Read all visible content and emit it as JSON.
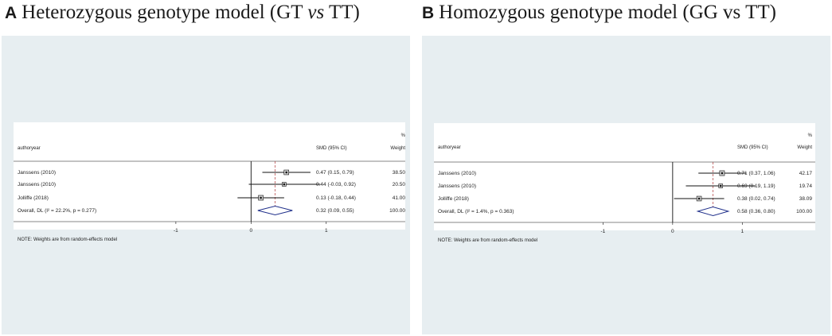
{
  "chart_data": [
    {
      "type": "forest",
      "panel_letter": "A",
      "title_parts": [
        "Heterozygous genotype model (GT ",
        "vs",
        " TT)"
      ],
      "header": {
        "study": "authoryear",
        "effect": "SMD (95% CI)",
        "weight_pct": "%",
        "weight": "Weight"
      },
      "rows": [
        {
          "label": "Janssens (2010)",
          "est": 0.47,
          "lo": 0.15,
          "hi": 0.79,
          "weight": 38.5,
          "effect_text": "0.47 (0.15, 0.79)",
          "weight_text": "38.50"
        },
        {
          "label": "Janssens (2010)",
          "est": 0.44,
          "lo": -0.03,
          "hi": 0.92,
          "weight": 20.5,
          "effect_text": "0.44 (-0.03, 0.92)",
          "weight_text": "20.50"
        },
        {
          "label": "Jolliffe (2018)",
          "est": 0.13,
          "lo": -0.18,
          "hi": 0.44,
          "weight": 41.0,
          "effect_text": "0.13 (-0.18, 0.44)",
          "weight_text": "41.00"
        }
      ],
      "overall": {
        "label": "Overall, DL (I² = 22.2%, p = 0.277)",
        "est": 0.32,
        "lo": 0.09,
        "hi": 0.55,
        "effect_text": "0.32 (0.09, 0.55)",
        "weight_text": "100.00"
      },
      "xlim": [
        -2.1,
        1.5
      ],
      "x_ticks": [
        -1,
        0,
        1
      ],
      "x_tick_labels": [
        "-1",
        "0",
        "1"
      ],
      "note": "NOTE: Weights are from random-effects model"
    },
    {
      "type": "forest",
      "panel_letter": "B",
      "title_parts": [
        "Homozygous genotype model (GG vs TT)"
      ],
      "header": {
        "study": "authoryear",
        "effect": "SMD (95% CI)",
        "weight_pct": "%",
        "weight": "Weight"
      },
      "rows": [
        {
          "label": "Janssens (2010)",
          "est": 0.71,
          "lo": 0.37,
          "hi": 1.06,
          "weight": 42.17,
          "effect_text": "0.71 (0.37, 1.06)",
          "weight_text": "42.17"
        },
        {
          "label": "Janssens (2010)",
          "est": 0.69,
          "lo": 0.19,
          "hi": 1.19,
          "weight": 19.74,
          "effect_text": "0.69 (0.19, 1.19)",
          "weight_text": "19.74"
        },
        {
          "label": "Jolliffe (2018)",
          "est": 0.38,
          "lo": 0.02,
          "hi": 0.74,
          "weight": 38.09,
          "effect_text": "0.38 (0.02, 0.74)",
          "weight_text": "38.09"
        }
      ],
      "overall": {
        "label": "Overall, DL (I² = 1.4%, p = 0.363)",
        "est": 0.58,
        "lo": 0.36,
        "hi": 0.8,
        "effect_text": "0.58 (0.36, 0.80)",
        "weight_text": "100.00"
      },
      "xlim": [
        -2.4,
        1.5
      ],
      "x_ticks": [
        -1,
        0,
        1
      ],
      "x_tick_labels": [
        "-1",
        "0",
        "1"
      ],
      "note": "NOTE: Weights are from random-effects model"
    }
  ],
  "colors": {
    "panel_background": "#e7eef1",
    "plot_background": "#ffffff",
    "diamond": "#1f2f8a",
    "overall_line": "#b03a3a",
    "line": "#111111"
  }
}
